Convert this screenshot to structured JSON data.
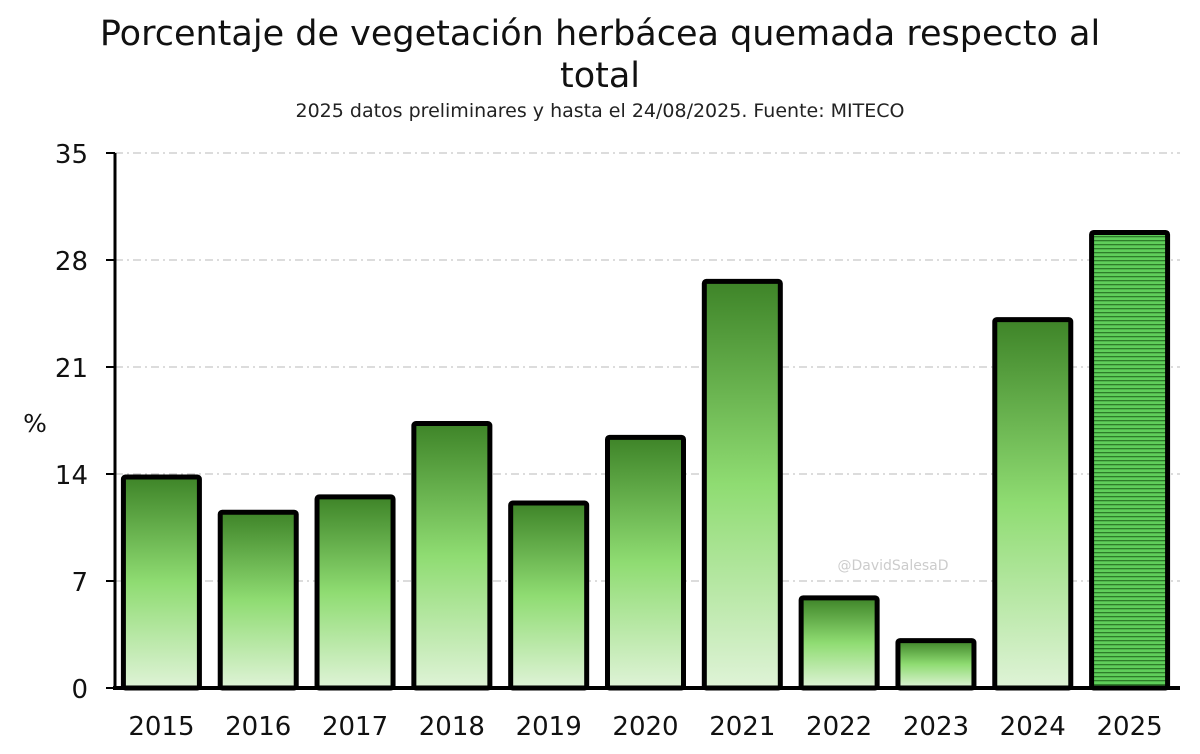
{
  "chart_data": {
    "type": "bar",
    "title_line1": "Porcentaje de vegetación herbácea quemada respecto al",
    "title_line2": "total",
    "subtitle": "2025 datos preliminares y hasta el 24/08/2025. Fuente: MITECO",
    "xlabel": "",
    "ylabel": "%",
    "ylim": [
      0,
      35
    ],
    "yticks": [
      0,
      7,
      14,
      21,
      28,
      35
    ],
    "grid": true,
    "categories": [
      "2015",
      "2016",
      "2017",
      "2018",
      "2019",
      "2020",
      "2021",
      "2022",
      "2023",
      "2024",
      "2025"
    ],
    "values": [
      13.8,
      11.5,
      12.5,
      17.3,
      12.1,
      16.4,
      26.6,
      5.9,
      3.1,
      24.1,
      29.8
    ],
    "preliminary_category": "2025",
    "watermark": "@DavidSalesaD",
    "colors": {
      "bar_top": "#3e8428",
      "bar_mid": "#8fdc72",
      "bar_bottom": "#dff3d7",
      "preliminary_fill": "#5fcf5a",
      "preliminary_stripe": "#2e7d2a",
      "outline": "#000000",
      "grid": "#c8c8c8"
    }
  }
}
